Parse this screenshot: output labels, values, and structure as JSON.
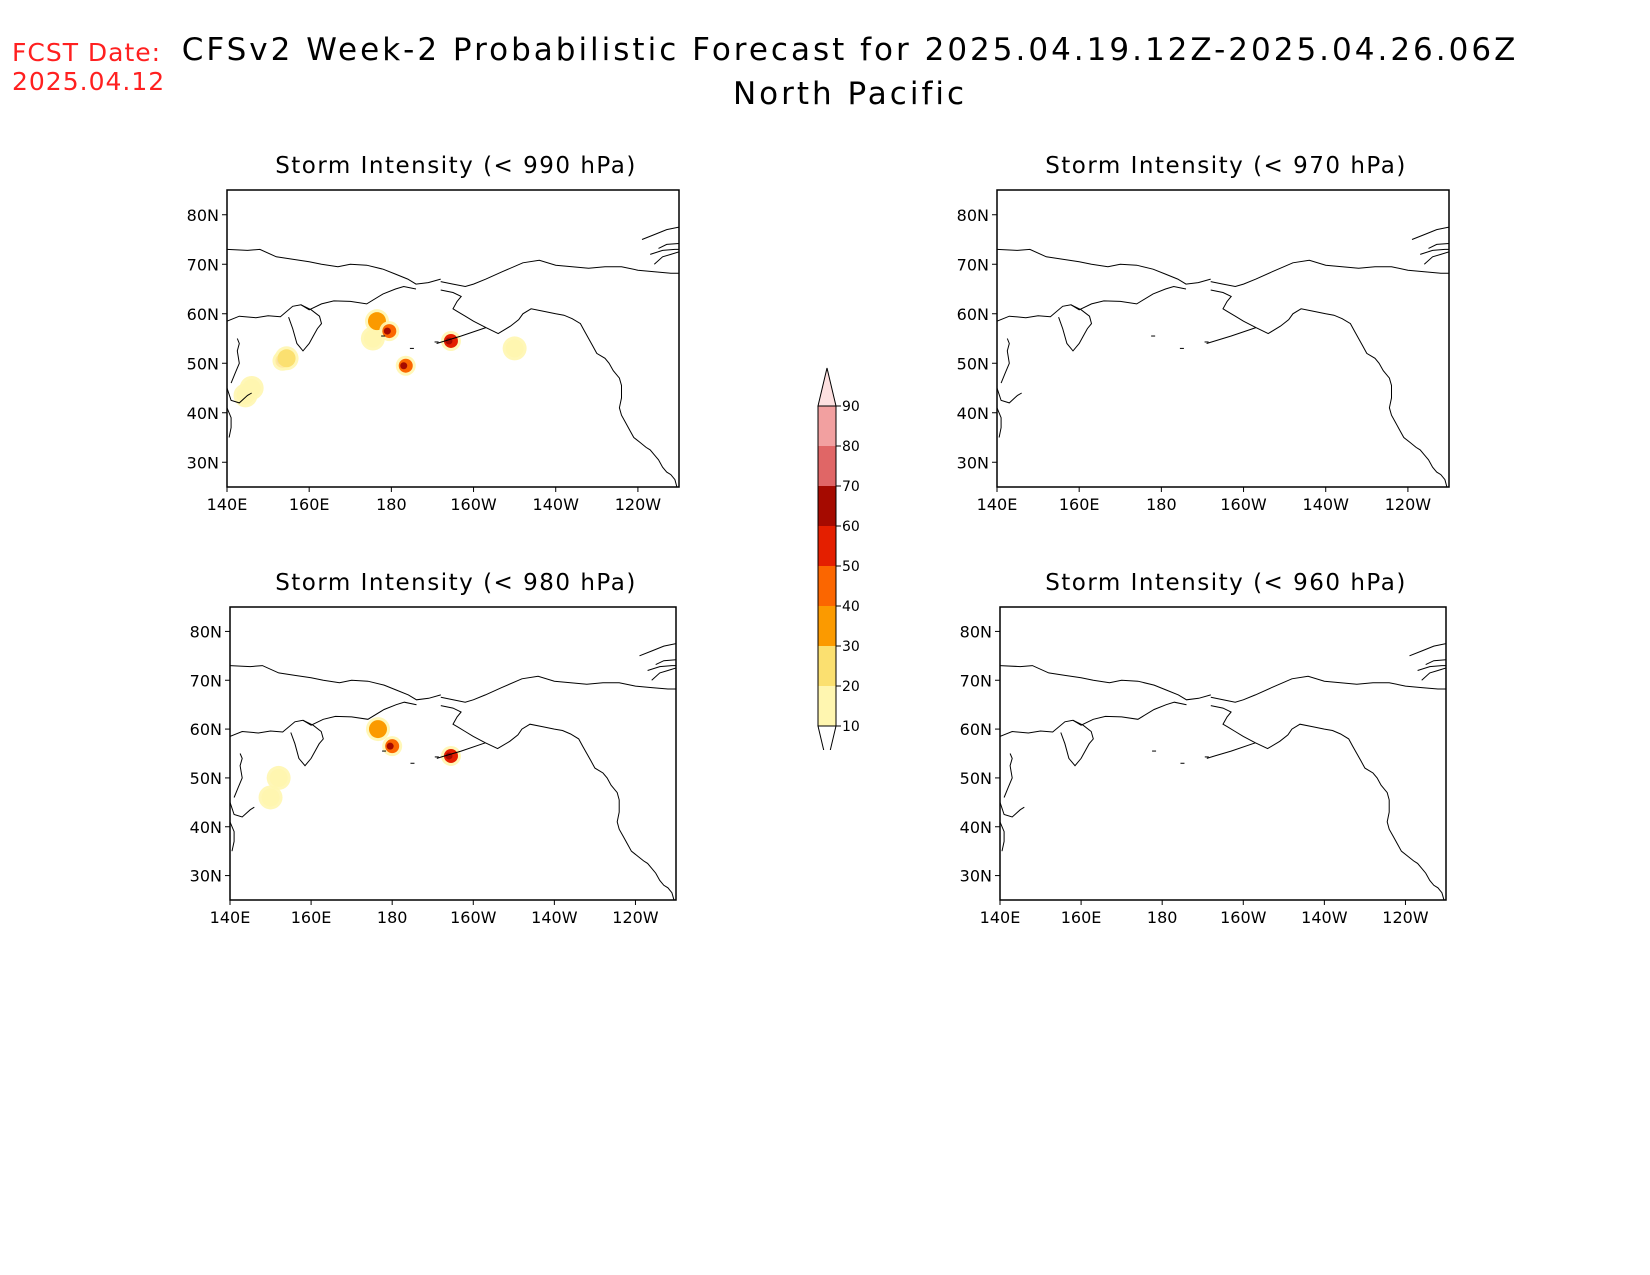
{
  "forecast_date": {
    "label": "FCST Date:",
    "value": "2025.04.12"
  },
  "title": {
    "line1": "CFSv2 Week-2 Probabilistic Forecast for 2025.04.19.12Z-2025.04.26.06Z",
    "line2": "North Pacific"
  },
  "colors": {
    "forecast_date_text": "#ff2020",
    "scale": [
      "#fff6b0",
      "#fbe070",
      "#fb9a00",
      "#fb6600",
      "#e41f00",
      "#a50a00",
      "#e06666",
      "#f2a0a0",
      "#fde0e0"
    ]
  },
  "colorbar": {
    "levels": [
      "10",
      "20",
      "30",
      "40",
      "50",
      "60",
      "70",
      "80",
      "90"
    ]
  },
  "axes": {
    "lat_labels": [
      "80N",
      "70N",
      "60N",
      "50N",
      "40N",
      "30N"
    ],
    "lon_labels": [
      "140E",
      "160E",
      "180",
      "160W",
      "140W",
      "120W"
    ]
  },
  "panels": [
    {
      "id": "p990",
      "title": "Storm Intensity (< 990 hPa)",
      "blobs": [
        {
          "lon": 144.5,
          "lat": 43.5,
          "cat": 1
        },
        {
          "lon": 146,
          "lat": 45,
          "cat": 1
        },
        {
          "lon": 153.5,
          "lat": 50.5,
          "cat": 4
        },
        {
          "lon": 154.5,
          "lat": 51,
          "cat": 2
        },
        {
          "lon": 175.5,
          "lat": 55,
          "cat": 1
        },
        {
          "lon": 176.5,
          "lat": 58.5,
          "cat": 3
        },
        {
          "lon": 179.5,
          "lat": 56.5,
          "cat": 4
        },
        {
          "lon": -176.5,
          "lat": 49.5,
          "cat": 4
        },
        {
          "lon": -165.5,
          "lat": 54.5,
          "cat": 5
        },
        {
          "lon": -150,
          "lat": 53,
          "cat": 1
        }
      ]
    },
    {
      "id": "p970",
      "title": "Storm Intensity (< 970 hPa)",
      "blobs": []
    },
    {
      "id": "p980",
      "title": "Storm Intensity (< 980 hPa)",
      "blobs": [
        {
          "lon": 152,
          "lat": 50,
          "cat": 1
        },
        {
          "lon": 150,
          "lat": 46,
          "cat": 1
        },
        {
          "lon": 176.5,
          "lat": 60,
          "cat": 3
        },
        {
          "lon": 180,
          "lat": 56.5,
          "cat": 4
        },
        {
          "lon": -165.5,
          "lat": 54.5,
          "cat": 5
        }
      ]
    },
    {
      "id": "p960",
      "title": "Storm Intensity (< 960 hPa)",
      "blobs": []
    }
  ]
}
